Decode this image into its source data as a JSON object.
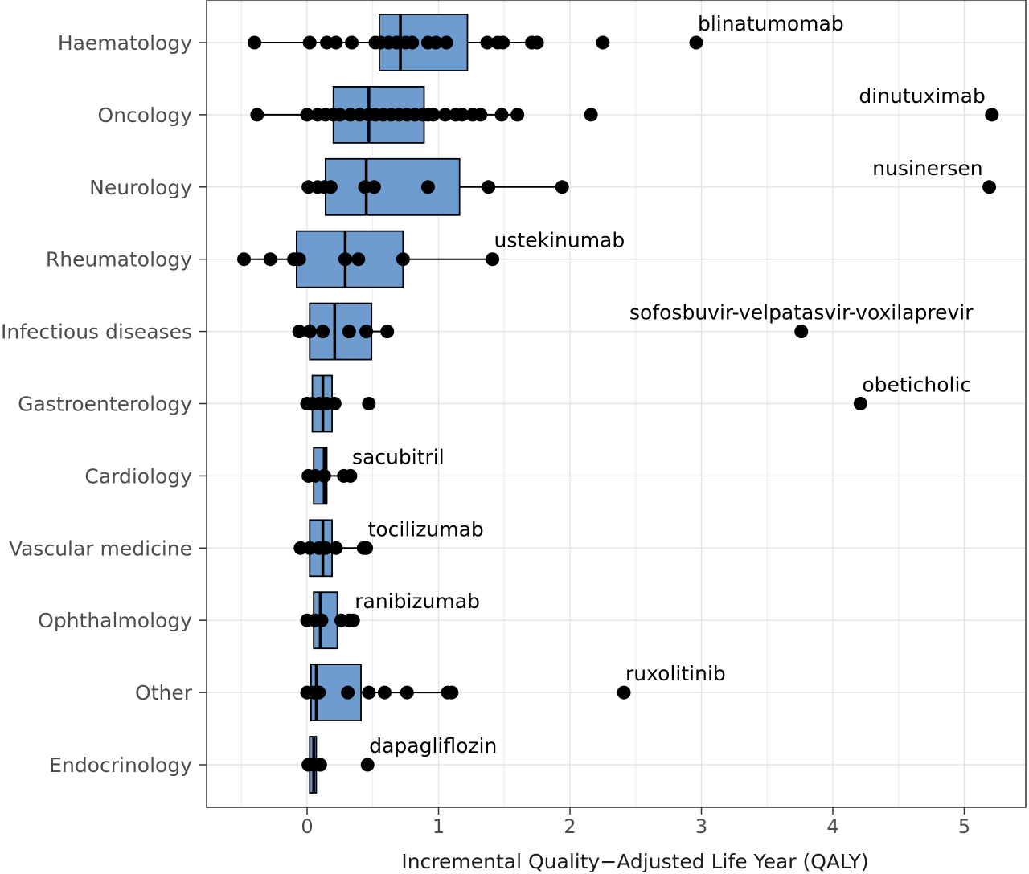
{
  "chart_data": {
    "type": "box",
    "title": "",
    "xlabel": "Incremental Quality−Adjusted Life Year (QALY)",
    "ylabel": "",
    "xlim": [
      -0.78,
      5.4
    ],
    "xticks": [
      0,
      1,
      2,
      3,
      4,
      5
    ],
    "grid": true,
    "colors": {
      "box_fill": "#6f9ccf",
      "grid": "#e3e3e3",
      "points": "#000000",
      "frame": "#333333"
    },
    "categories": [
      {
        "name": "Haematology",
        "box": {
          "min": -0.4,
          "q1": 0.55,
          "median": 0.71,
          "q3": 1.22,
          "max": 1.75
        },
        "points": [
          -0.4,
          0.02,
          0.15,
          0.22,
          0.34,
          0.52,
          0.56,
          0.62,
          0.68,
          0.75,
          0.8,
          0.92,
          0.98,
          1.06,
          1.37,
          1.45,
          1.49,
          1.71,
          1.75,
          2.25,
          2.96
        ]
      },
      {
        "name": "Oncology",
        "box": {
          "min": -0.38,
          "q1": 0.2,
          "median": 0.47,
          "q3": 0.89,
          "max": 1.6
        },
        "points": [
          -0.38,
          0.0,
          0.08,
          0.14,
          0.2,
          0.25,
          0.33,
          0.4,
          0.47,
          0.52,
          0.58,
          0.64,
          0.7,
          0.76,
          0.82,
          0.88,
          0.92,
          0.96,
          1.05,
          1.13,
          1.18,
          1.26,
          1.32,
          1.48,
          1.6,
          2.16,
          5.21
        ]
      },
      {
        "name": "Neurology",
        "box": {
          "min": 0.0,
          "q1": 0.14,
          "median": 0.45,
          "q3": 1.16,
          "max": 1.94
        },
        "points": [
          0.01,
          0.08,
          0.13,
          0.18,
          0.44,
          0.51,
          0.92,
          1.38,
          1.94,
          5.19
        ]
      },
      {
        "name": "Rheumatology",
        "box": {
          "min": -0.48,
          "q1": -0.08,
          "median": 0.29,
          "q3": 0.73,
          "max": 1.41
        },
        "points": [
          -0.48,
          -0.28,
          -0.1,
          -0.06,
          0.29,
          0.39,
          0.73,
          1.41
        ]
      },
      {
        "name": "Infectious diseases",
        "box": {
          "min": -0.06,
          "q1": 0.02,
          "median": 0.21,
          "q3": 0.49,
          "max": 0.61
        },
        "points": [
          -0.06,
          0.02,
          0.12,
          0.32,
          0.45,
          0.61,
          3.76
        ]
      },
      {
        "name": "Gastroenterology",
        "box": {
          "min": 0.0,
          "q1": 0.04,
          "median": 0.12,
          "q3": 0.19,
          "max": 0.21
        },
        "points": [
          0.0,
          0.04,
          0.09,
          0.15,
          0.21,
          0.47,
          4.21
        ]
      },
      {
        "name": "Cardiology",
        "box": {
          "min": 0.01,
          "q1": 0.05,
          "median": 0.13,
          "q3": 0.15,
          "max": 0.33
        },
        "points": [
          0.01,
          0.06,
          0.13,
          0.28,
          0.33
        ]
      },
      {
        "name": "Vascular medicine",
        "box": {
          "min": -0.05,
          "q1": 0.02,
          "median": 0.12,
          "q3": 0.19,
          "max": 0.45
        },
        "points": [
          -0.05,
          0.02,
          0.09,
          0.14,
          0.22,
          0.43,
          0.45
        ]
      },
      {
        "name": "Ophthalmology",
        "box": {
          "min": 0.0,
          "q1": 0.05,
          "median": 0.1,
          "q3": 0.23,
          "max": 0.35
        },
        "points": [
          0.0,
          0.06,
          0.11,
          0.26,
          0.32,
          0.35
        ]
      },
      {
        "name": "Other",
        "box": {
          "min": 0.0,
          "q1": 0.03,
          "median": 0.07,
          "q3": 0.41,
          "max": 1.1
        },
        "points": [
          0.0,
          0.05,
          0.09,
          0.31,
          0.47,
          0.59,
          0.76,
          1.07,
          1.1,
          2.41
        ]
      },
      {
        "name": "Endocrinology",
        "box": {
          "min": 0.01,
          "q1": 0.02,
          "median": 0.05,
          "q3": 0.07,
          "max": 0.1
        },
        "points": [
          0.01,
          0.05,
          0.1,
          0.46
        ]
      }
    ],
    "annotations": [
      {
        "text": "blinatumomab",
        "category": "Haematology",
        "x": 2.96,
        "align": "start"
      },
      {
        "text": "dinutuximab",
        "category": "Oncology",
        "x": 5.21,
        "align": "end"
      },
      {
        "text": "nusinersen",
        "category": "Neurology",
        "x": 5.19,
        "align": "end"
      },
      {
        "text": "ustekinumab",
        "category": "Rheumatology",
        "x": 1.41,
        "align": "start"
      },
      {
        "text": "sofosbuvir-velpatasvir-voxilaprevir",
        "category": "Infectious diseases",
        "x": 3.76,
        "align": "middle"
      },
      {
        "text": "obeticholic",
        "category": "Gastroenterology",
        "x": 4.21,
        "align": "start"
      },
      {
        "text": "sacubitril",
        "category": "Cardiology",
        "x": 0.33,
        "align": "start"
      },
      {
        "text": "tocilizumab",
        "category": "Vascular medicine",
        "x": 0.45,
        "align": "start"
      },
      {
        "text": "ranibizumab",
        "category": "Ophthalmology",
        "x": 0.35,
        "align": "start"
      },
      {
        "text": "ruxolitinib",
        "category": "Other",
        "x": 2.41,
        "align": "start"
      },
      {
        "text": "dapagliflozin",
        "category": "Endocrinology",
        "x": 0.46,
        "align": "start"
      }
    ]
  }
}
